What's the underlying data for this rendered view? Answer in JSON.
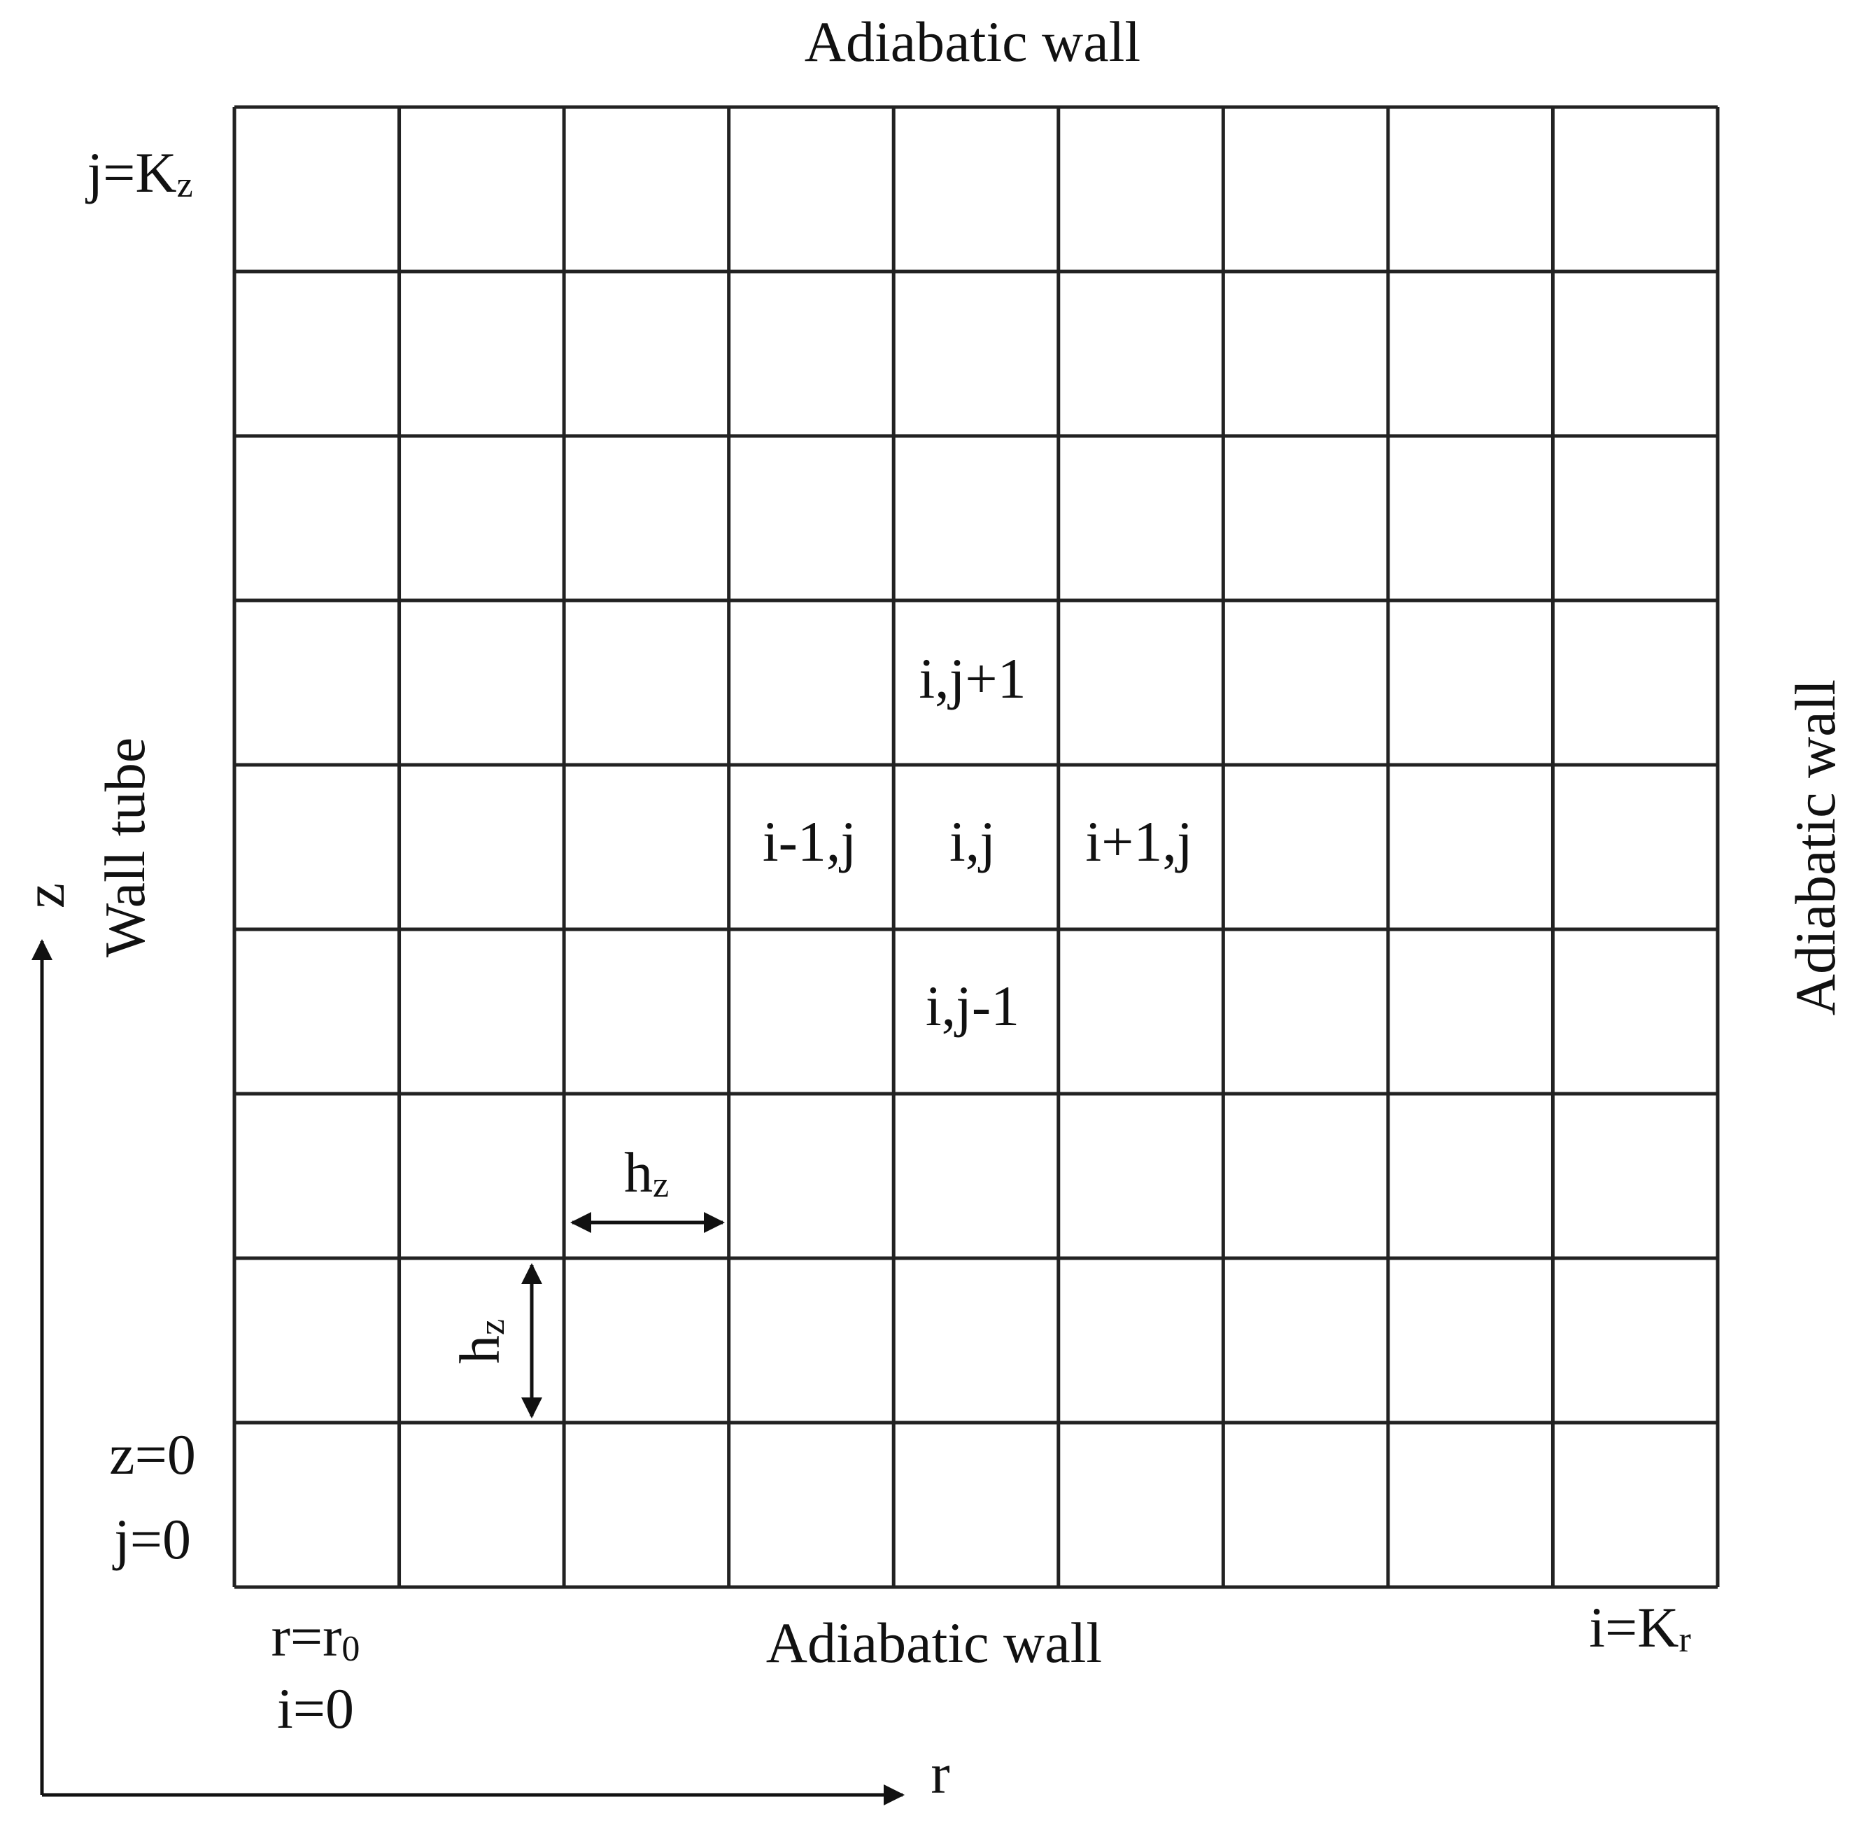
{
  "labels": {
    "top_wall": "Adiabatic wall",
    "bottom_wall": "Adiabatic wall",
    "right_wall": "Adiabatic wall",
    "left_wall": "Wall tube",
    "j_top": {
      "main": "j=K",
      "sub": "z"
    },
    "z0": "z=0",
    "j0": "j=0",
    "r0": {
      "main": "r=r",
      "sub": "0"
    },
    "i0": "i=0",
    "i_right": {
      "main": "i=K",
      "sub": "r"
    },
    "axis_z": "z",
    "axis_r": "r",
    "hz_horizontal": {
      "main": "h",
      "sub": "z"
    },
    "hz_vertical": {
      "main": "h",
      "sub": "z"
    }
  },
  "stencil": {
    "north": "i,j+1",
    "west": "i-1,j",
    "center": "i,j",
    "east": "i+1,j",
    "south": "i,j-1"
  }
}
